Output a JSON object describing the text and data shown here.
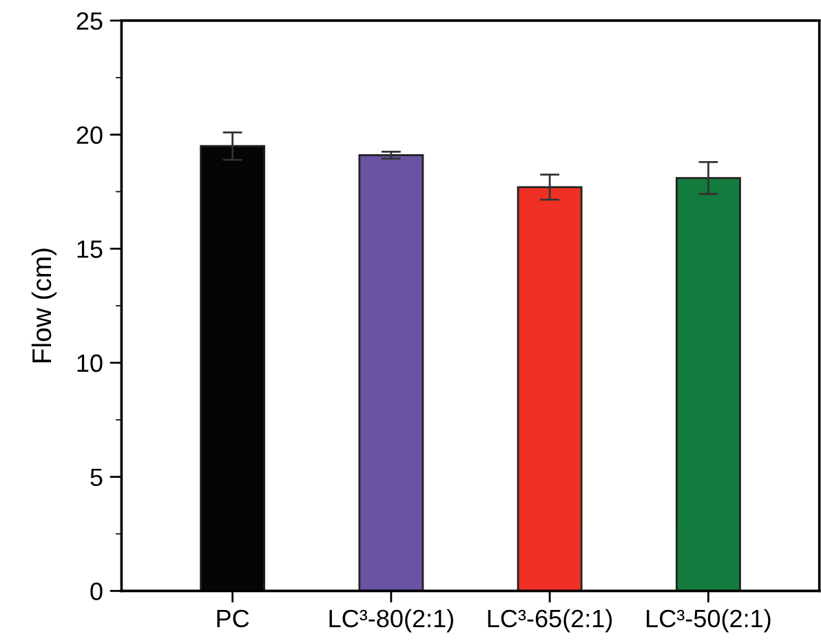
{
  "chart_data": {
    "type": "bar",
    "ylabel": "Flow (cm)",
    "categories": [
      "PC",
      "LC³-80(2:1)",
      "LC³-65(2:1)",
      "LC³-50(2:1)"
    ],
    "values": [
      19.5,
      19.1,
      17.7,
      18.1
    ],
    "errors": [
      0.6,
      0.15,
      0.55,
      0.7
    ],
    "colors": [
      "#050505",
      "#6a53a2",
      "#ee3124",
      "#137b3d"
    ],
    "ylim": [
      0,
      25
    ],
    "yticks": [
      0,
      5,
      10,
      15,
      20,
      25
    ],
    "grid": false,
    "legend": false
  }
}
